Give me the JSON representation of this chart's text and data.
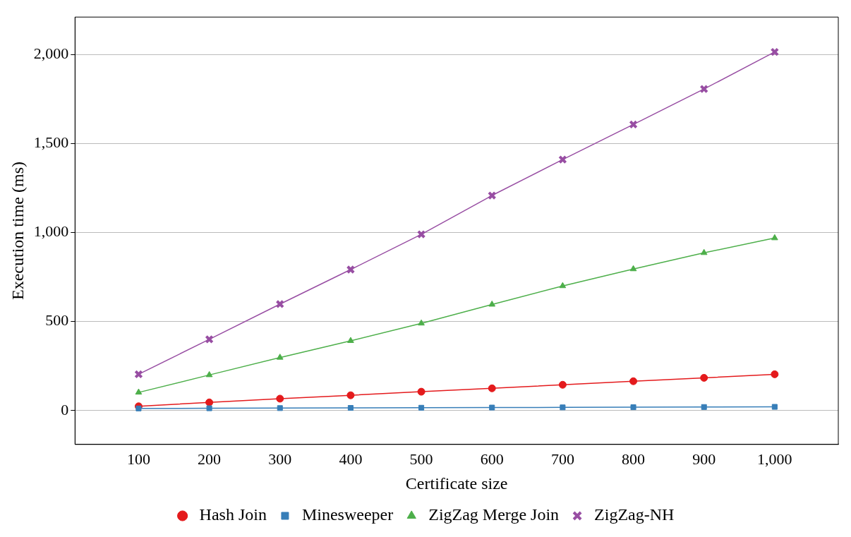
{
  "chart_data": {
    "type": "line",
    "xlabel": "Certificate size",
    "ylabel": "Execution time (ms)",
    "x": [
      100,
      200,
      300,
      400,
      500,
      600,
      700,
      800,
      900,
      1000
    ],
    "xlim": [
      10,
      1090
    ],
    "ylim": [
      -190,
      2210
    ],
    "xticks": [
      100,
      200,
      300,
      400,
      500,
      600,
      700,
      800,
      900,
      {
        "value": 1000,
        "label": "1,000"
      }
    ],
    "yticks": [
      0,
      500,
      {
        "value": 1000,
        "label": "1,000"
      },
      {
        "value": 1500,
        "label": "1,500"
      },
      {
        "value": 2000,
        "label": "2,000"
      }
    ],
    "grid": "y",
    "legend": "bottom",
    "line_style": "solid",
    "series": [
      {
        "name": "Hash Join",
        "color": "#e41a1c",
        "marker": "circle",
        "values": [
          24,
          46,
          67,
          86,
          106,
          125,
          145,
          165,
          184,
          204
        ]
      },
      {
        "name": "Minesweeper",
        "color": "#377eb8",
        "marker": "square",
        "values": [
          12,
          13,
          14,
          15,
          16,
          17,
          18,
          19,
          20,
          21
        ]
      },
      {
        "name": "ZigZag Merge Join",
        "color": "#4daf4a",
        "marker": "triangle",
        "values": [
          102,
          200,
          298,
          392,
          490,
          596,
          700,
          795,
          886,
          969
        ]
      },
      {
        "name": "ZigZag-NH",
        "color": "#984ea3",
        "marker": "cross",
        "values": [
          204,
          400,
          598,
          792,
          990,
          1208,
          1410,
          1607,
          1806,
          2014
        ]
      }
    ]
  }
}
